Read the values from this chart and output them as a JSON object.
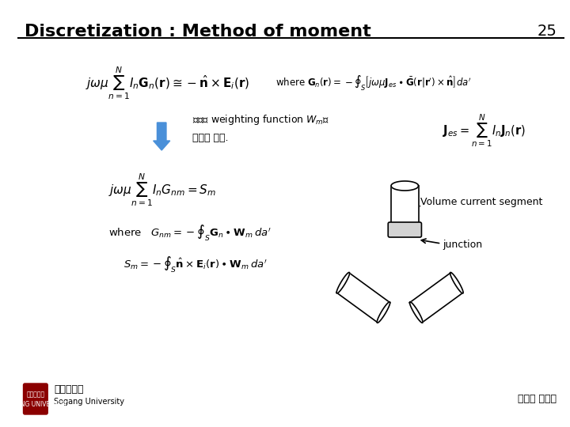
{
  "title": "Discretization : Method of moment",
  "page_number": "25",
  "background_color": "#ffffff",
  "title_color": "#000000",
  "title_fontsize": 16,
  "title_bold": true,
  "eq1": "j\\omega\\mu\\sum_{n=1}^{N}I_n\\mathbf{G}_n(\\mathbf{r})\\cong-\\hat{\\mathbf{n}}\\times\\mathbf{E}_i(\\mathbf{r})",
  "eq1_where": "where $\\mathbf{G}_n(\\mathbf{r})=-\\oint_{S}\\left[j\\omega\\mu\\mathbf{J}_{es}\\bullet\\bar{\\mathbf{G}}(\\mathbf{r}|\\mathbf{r}')\\times\\hat{\\mathbf{n}}\\right]da'$",
  "arrow_text_korean": "양변에 weighting function $W_m$을\n곱하고 적분.",
  "eq_J": "$\\mathbf{J}_{es}=\\sum_{n=1}^{N}I_n\\mathbf{J}_n(\\mathbf{r})$",
  "eq2": "$j\\omega\\mu\\sum_{n=1}^{N}I_nG_{nm}=S_m$",
  "eq3_where": "where   $G_{nm}=-\\oint_{S}\\mathbf{G}_n\\bullet\\mathbf{W}_m\\,da'$",
  "eq4": "$S_m=-\\oint_{S}\\hat{\\mathbf{n}}\\times\\mathbf{E}_i(\\mathbf{r})\\bullet\\mathbf{W}_m\\,da'$",
  "label_volume": "Volume current segment",
  "label_junction": "junction",
  "footer_korean": "전자파 연구실",
  "footer_univ": "서강대학교",
  "footer_univ_en": "Sogang University"
}
